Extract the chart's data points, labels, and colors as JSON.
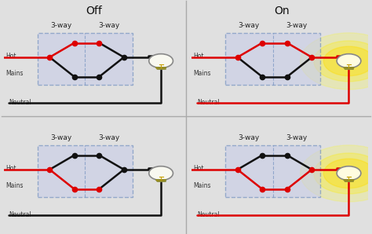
{
  "title_off": "Off",
  "title_on": "On",
  "bg_outer": "#e0e0e0",
  "bg_panel": "#f2f2f2",
  "switch_fill": "#c8cce8",
  "switch_edge": "#6688bb",
  "RED": "#dd0000",
  "BLK": "#111111",
  "label_hot": "Hot",
  "label_mains": "Mains",
  "label_neutral": "Neutral",
  "label_3way": "3-way",
  "fs_title": 10,
  "fs_label": 6.5,
  "fs_small": 5.5,
  "divider_color": "#aaaaaa",
  "panels": [
    {
      "on": false,
      "left_top": true,
      "right_top": false
    },
    {
      "on": true,
      "left_top": true,
      "right_top": true
    },
    {
      "on": false,
      "left_top": false,
      "right_top": true
    },
    {
      "on": true,
      "left_top": false,
      "right_top": false
    }
  ]
}
